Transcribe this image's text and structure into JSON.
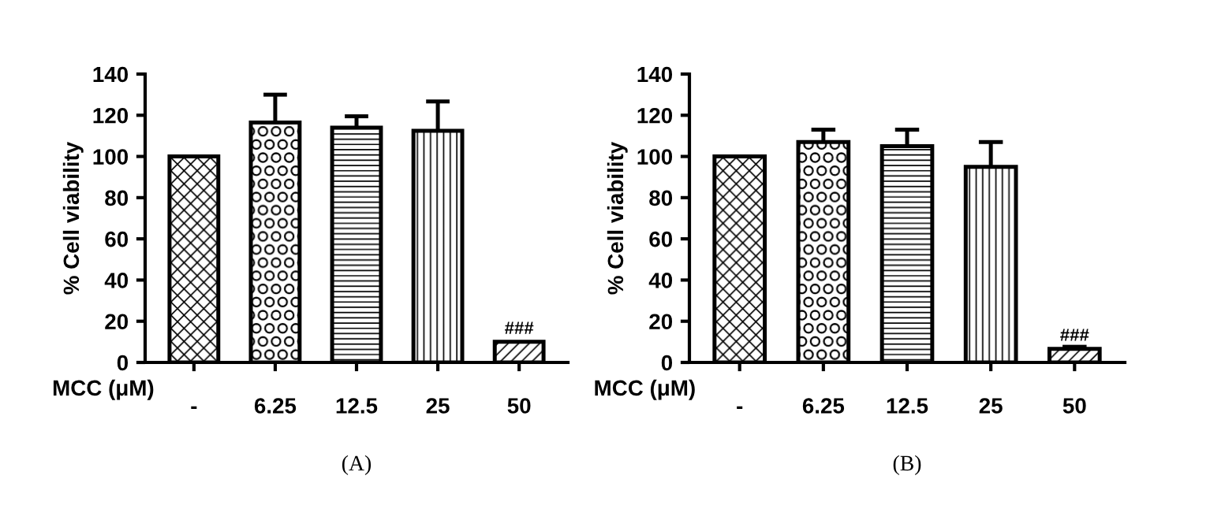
{
  "chart_data": [
    {
      "type": "bar",
      "title": "(A)",
      "xlabel": "MCC (μM)",
      "ylabel": "% Cell viability",
      "categories": [
        "-",
        "6.25",
        "12.5",
        "25",
        "50"
      ],
      "values": [
        100,
        116.5,
        114,
        112.5,
        10
      ],
      "errors": [
        null,
        [
          116.5,
          130
        ],
        [
          114,
          119.5
        ],
        [
          112.5,
          126.7
        ],
        null
      ],
      "color": "#ffffff",
      "ylim": [
        0,
        140
      ],
      "yticks": [
        0,
        20,
        40,
        60,
        80,
        100,
        120,
        140
      ],
      "annotations": [
        {
          "text": "###",
          "x": "50",
          "y": 10
        }
      ]
    },
    {
      "type": "bar",
      "title": "(B)",
      "xlabel": "MCC (μM)",
      "ylabel": "% Cell viability",
      "categories": [
        "-",
        "6.25",
        "12.5",
        "25",
        "50"
      ],
      "values": [
        100,
        107,
        105,
        95,
        6.6
      ],
      "errors": [
        null,
        [
          107,
          113
        ],
        [
          105,
          113
        ],
        [
          95,
          107
        ],
        [
          6.6,
          7.6
        ]
      ],
      "color": "#ffffff",
      "ylim": [
        0,
        140
      ],
      "yticks": [
        0,
        20,
        40,
        60,
        80,
        100,
        120,
        140
      ],
      "annotations": [
        {
          "text": "###",
          "x": "50",
          "y": 6.6
        }
      ]
    }
  ]
}
